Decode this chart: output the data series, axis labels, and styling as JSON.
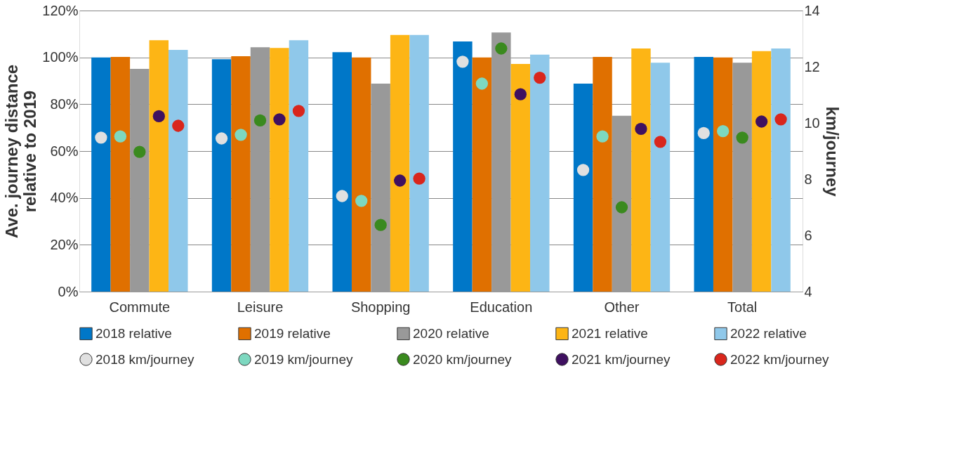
{
  "chart_data": {
    "type": "bar",
    "categories": [
      "Commute",
      "Leisure",
      "Shopping",
      "Education",
      "Other",
      "Total"
    ],
    "ylabel": "Ave. journey distance\nrelative to 2019",
    "y2label": "km/journey",
    "ylim": [
      0,
      120
    ],
    "yticks": [
      {
        "value": 0,
        "label": "0%"
      },
      {
        "value": 20,
        "label": "20%"
      },
      {
        "value": 40,
        "label": "40%"
      },
      {
        "value": 60,
        "label": "60%"
      },
      {
        "value": 80,
        "label": "80%"
      },
      {
        "value": 100,
        "label": "100%"
      },
      {
        "value": 120,
        "label": "120%"
      }
    ],
    "y2lim": [
      4,
      14
    ],
    "y2ticks": [
      4,
      6,
      8,
      10,
      12,
      14
    ],
    "grid": "y",
    "legend": "bottom",
    "series": [
      {
        "name": "2018 relative",
        "color": "#0077c8",
        "values": [
          100,
          99.2,
          102.2,
          106.8,
          88.8,
          100.2
        ]
      },
      {
        "name": "2019 relative",
        "color": "#e07000",
        "values": [
          100.2,
          100.5,
          100,
          100,
          100.2,
          100
        ]
      },
      {
        "name": "2020 relative",
        "color": "#999999",
        "values": [
          95.1,
          104.3,
          88.8,
          110.6,
          75.1,
          97.7
        ]
      },
      {
        "name": "2021 relative",
        "color": "#fdb515",
        "values": [
          107.3,
          104,
          109.6,
          97.2,
          103.8,
          102.7
        ]
      },
      {
        "name": "2022 relative",
        "color": "#8fc8ea",
        "values": [
          103.2,
          107.3,
          109.6,
          101.2,
          97.7,
          103.8
        ]
      },
      {
        "name": "2018 km/journey",
        "type": "scatter",
        "axis": "y2",
        "marker": "circle",
        "color": "#e0e0e0",
        "x": [
          "Commute",
          "Leisure",
          "Shopping",
          "Education",
          "Other",
          "Total"
        ],
        "values": [
          9.48,
          9.45,
          7.4,
          12.18,
          8.33,
          9.64
        ]
      },
      {
        "name": "2019 km/journey",
        "type": "scatter",
        "axis": "y2",
        "marker": "circle",
        "color": "#7dd8c0",
        "x": [
          "Commute",
          "Leisure",
          "Shopping",
          "Education",
          "Other",
          "Total"
        ],
        "values": [
          9.52,
          9.58,
          7.23,
          11.4,
          9.52,
          9.71
        ]
      },
      {
        "name": "2020 km/journey",
        "type": "scatter",
        "axis": "y2",
        "marker": "circle",
        "color": "#3a8a1e",
        "x": [
          "Commute",
          "Leisure",
          "Shopping",
          "Education",
          "Other",
          "Total"
        ],
        "values": [
          8.97,
          10.09,
          6.37,
          12.65,
          7.0,
          9.48
        ]
      },
      {
        "name": "2021 km/journey",
        "type": "scatter",
        "axis": "y2",
        "marker": "circle",
        "color": "#3f1060",
        "x": [
          "Commute",
          "Leisure",
          "Shopping",
          "Education",
          "Other",
          "Total"
        ],
        "values": [
          10.24,
          10.13,
          7.95,
          11.02,
          9.79,
          10.05
        ]
      },
      {
        "name": "2022 km/journey",
        "type": "scatter",
        "axis": "y2",
        "marker": "circle",
        "color": "#d9261c",
        "x": [
          "Commute",
          "Leisure",
          "Shopping",
          "Education",
          "Other",
          "Total"
        ],
        "values": [
          9.9,
          10.43,
          8.02,
          11.61,
          9.33,
          10.13
        ]
      }
    ]
  }
}
